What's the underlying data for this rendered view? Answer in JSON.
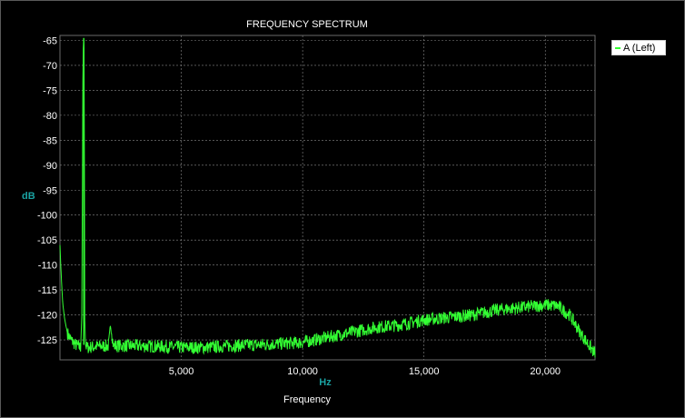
{
  "chart_data": {
    "type": "line",
    "title": "FREQUENCY SPECTRUM",
    "xlabel_unit": "Hz",
    "xlabel": "Frequency",
    "ylabel": "dB",
    "xlim": [
      0,
      22050
    ],
    "ylim": [
      -129,
      -64
    ],
    "x_ticks": [
      5000,
      10000,
      15000,
      20000
    ],
    "x_tick_labels": [
      "5,000",
      "10,000",
      "15,000",
      "20,000"
    ],
    "y_ticks": [
      -65,
      -70,
      -75,
      -80,
      -85,
      -90,
      -95,
      -100,
      -105,
      -110,
      -115,
      -120,
      -125
    ],
    "grid": true,
    "legend_position": "top-right",
    "series": [
      {
        "name": "A (Left)",
        "color": "#33ff33",
        "x": [
          0,
          60,
          120,
          200,
          300,
          450,
          650,
          850,
          900,
          950,
          980,
          1000,
          1020,
          1050,
          1100,
          1200,
          1500,
          2000,
          2100,
          2200,
          3000,
          4000,
          5000,
          6000,
          7000,
          8000,
          9000,
          10000,
          11000,
          12000,
          13000,
          14000,
          15000,
          16000,
          17000,
          18000,
          19000,
          20000,
          20500,
          21000,
          21500,
          22000
        ],
        "y": [
          -106,
          -113,
          -118,
          -121,
          -123.5,
          -125,
          -126,
          -126.5,
          -120,
          -68,
          -64.5,
          -68,
          -120,
          -126,
          -126.5,
          -126.5,
          -126.3,
          -126.2,
          -122,
          -126.2,
          -126.2,
          -126.3,
          -126.5,
          -126.5,
          -126.2,
          -126,
          -125.8,
          -125.5,
          -124.5,
          -123.5,
          -122.5,
          -122,
          -121,
          -120.5,
          -120,
          -119,
          -118.5,
          -118,
          -118.2,
          -120,
          -124,
          -127.5
        ]
      }
    ]
  },
  "legend": {
    "label": "A (Left)",
    "color": "#33ff33"
  }
}
